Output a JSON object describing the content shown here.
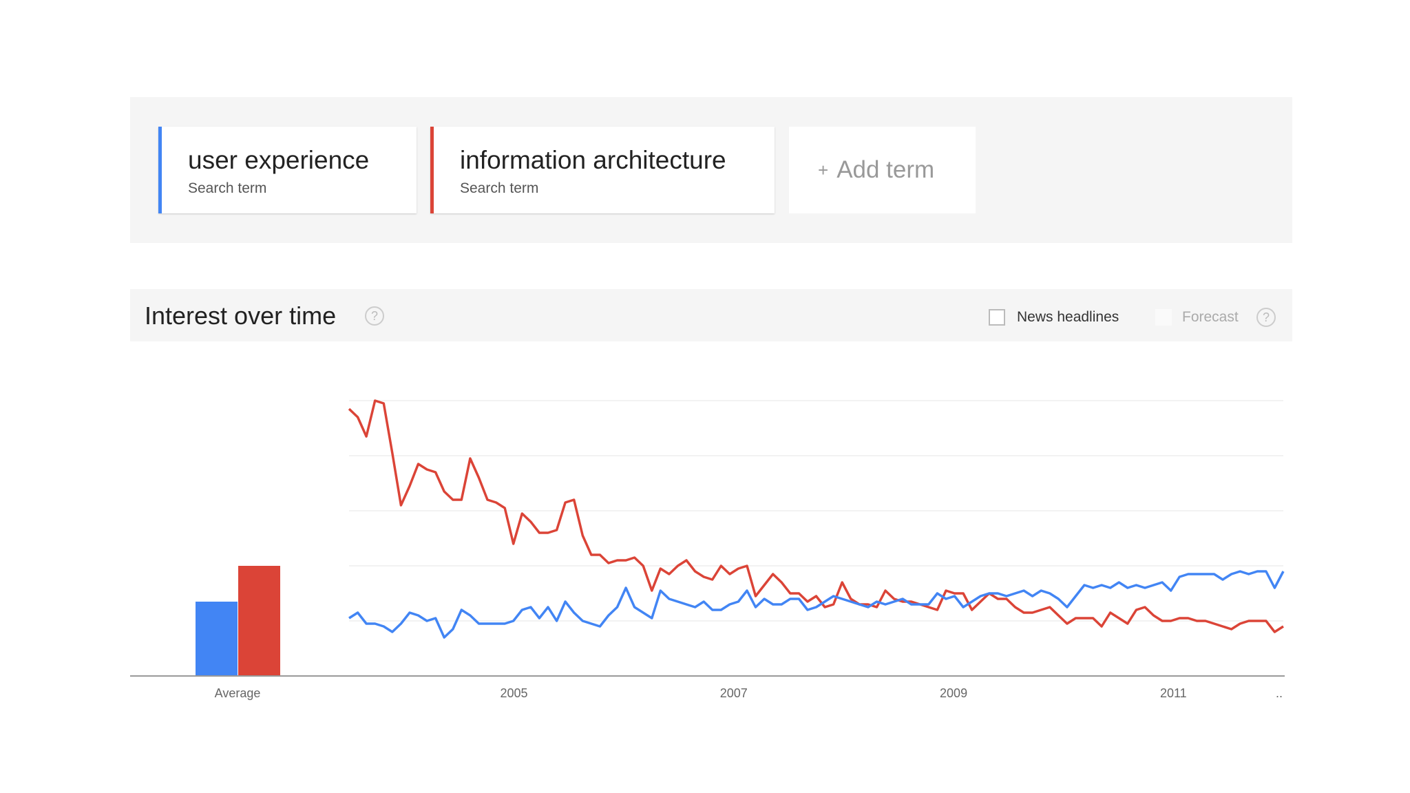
{
  "search_terms": [
    {
      "name": "user experience",
      "subtitle": "Search term",
      "color": "#4285f4"
    },
    {
      "name": "information architecture",
      "subtitle": "Search term",
      "color": "#db4437"
    }
  ],
  "add_term": {
    "icon": "plus-icon",
    "label": "Add term",
    "plus": "+"
  },
  "interest_panel": {
    "title": "Interest over time",
    "help_icon": "?",
    "news_headlines_label": "News headlines",
    "forecast_label": "Forecast"
  },
  "chart_data": {
    "type": "line",
    "title": "Interest over time",
    "x_start": 2004.0,
    "x_end": 2012.5,
    "xlim": [
      2004,
      2012.5
    ],
    "ylim": [
      0,
      100
    ],
    "grid": true,
    "x_tick_labels": [
      "2005",
      "2007",
      "2009",
      "2011",
      ".."
    ],
    "average": {
      "label": "Average",
      "values": [
        {
          "series": "user experience",
          "value": 27
        },
        {
          "series": "information architecture",
          "value": 40
        }
      ]
    },
    "series": [
      {
        "name": "user experience",
        "color": "#4285f4",
        "values": [
          21,
          23,
          19,
          19,
          18,
          16,
          19,
          23,
          22,
          20,
          21,
          14,
          17,
          24,
          22,
          19,
          19,
          19,
          19,
          20,
          24,
          25,
          21,
          25,
          20,
          27,
          23,
          20,
          19,
          18,
          22,
          25,
          32,
          25,
          23,
          21,
          31,
          28,
          27,
          26,
          25,
          27,
          24,
          24,
          26,
          27,
          31,
          25,
          28,
          26,
          26,
          28,
          28,
          24,
          25,
          27,
          29,
          28,
          27,
          26,
          25,
          27,
          26,
          27,
          28,
          26,
          26,
          26,
          30,
          28,
          29,
          25,
          27,
          29,
          30,
          30,
          29,
          30,
          31,
          29,
          31,
          30,
          28,
          25,
          29,
          33,
          32,
          33,
          32,
          34,
          32,
          33,
          32,
          33,
          34,
          31,
          36,
          37,
          37,
          37,
          37,
          35,
          37,
          38,
          37,
          38,
          38,
          32,
          38
        ]
      },
      {
        "name": "information architecture",
        "color": "#db4437",
        "values": [
          97,
          94,
          87,
          100,
          99,
          81,
          62,
          69,
          77,
          75,
          74,
          67,
          64,
          64,
          79,
          72,
          64,
          63,
          61,
          48,
          59,
          56,
          52,
          52,
          53,
          63,
          64,
          51,
          44,
          44,
          41,
          42,
          42,
          43,
          40,
          31,
          39,
          37,
          40,
          42,
          38,
          36,
          35,
          40,
          37,
          39,
          40,
          29,
          33,
          37,
          34,
          30,
          30,
          27,
          29,
          25,
          26,
          34,
          28,
          26,
          26,
          25,
          31,
          28,
          27,
          27,
          26,
          25,
          24,
          31,
          30,
          30,
          24,
          27,
          30,
          28,
          28,
          25,
          23,
          23,
          24,
          25,
          22,
          19,
          21,
          21,
          21,
          18,
          23,
          21,
          19,
          24,
          25,
          22,
          20,
          20,
          21,
          21,
          20,
          20,
          19,
          18,
          17,
          19,
          20,
          20,
          20,
          16,
          18
        ]
      }
    ]
  }
}
